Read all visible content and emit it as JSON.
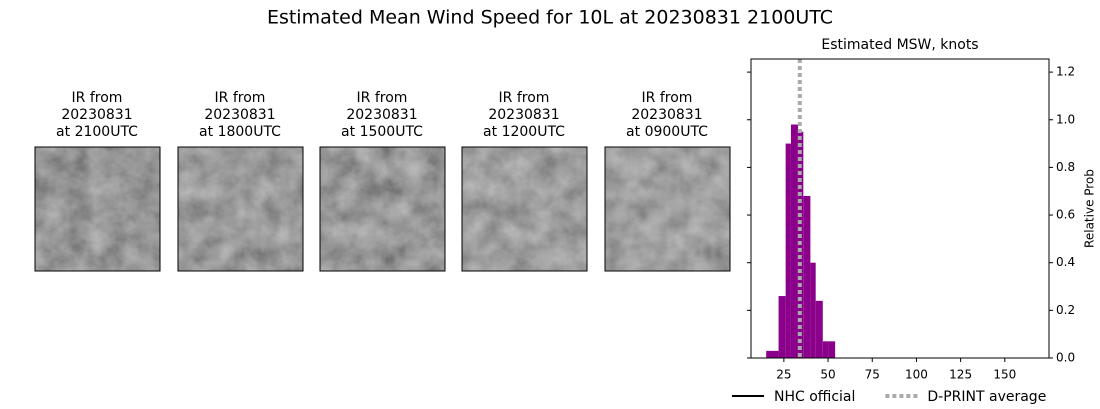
{
  "title": "Estimated Mean Wind Speed for 10L at 20230831 2100UTC",
  "panels": [
    {
      "lines": [
        "IR from",
        "20230831",
        "at 2100UTC"
      ]
    },
    {
      "lines": [
        "IR from",
        "20230831",
        "at 1800UTC"
      ]
    },
    {
      "lines": [
        "IR from",
        "20230831",
        "at 1500UTC"
      ]
    },
    {
      "lines": [
        "IR from",
        "20230831",
        "at 1200UTC"
      ]
    },
    {
      "lines": [
        "IR from",
        "20230831",
        "at 0900UTC"
      ]
    }
  ],
  "chart_data": {
    "type": "histogram",
    "title": "Estimated MSW, knots",
    "y_label": "Relative Prob",
    "bins": [
      15,
      22,
      26,
      29,
      33,
      36,
      40,
      43,
      47,
      50,
      54
    ],
    "values": [
      0.03,
      0.26,
      0.9,
      0.98,
      0.95,
      0.68,
      0.4,
      0.24,
      0.07,
      0.07
    ],
    "color": "#8b008b",
    "xlim": [
      6.4,
      175
    ],
    "xticks": [
      25,
      50,
      75,
      100,
      125,
      150
    ],
    "ylim": [
      0,
      1.255
    ],
    "yticks": [
      {
        "value": 0,
        "label": "0.0"
      },
      0.2,
      0.4,
      0.6,
      0.8,
      {
        "value": 1,
        "label": "1.0"
      },
      1.2
    ],
    "lines": [
      {
        "name": "NHC official",
        "color": "#000000",
        "style": "solid"
      },
      {
        "name": "D-PRINT average",
        "color": "#aaaaaa",
        "style": "dotted",
        "x": 34
      }
    ]
  }
}
